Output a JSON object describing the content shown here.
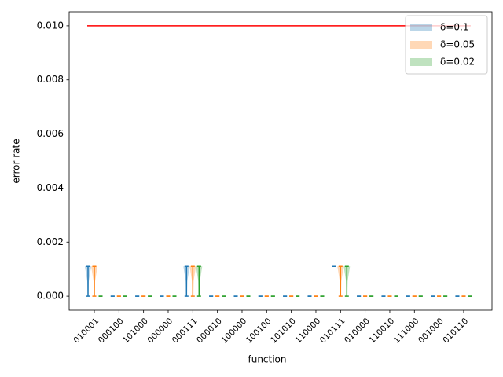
{
  "chart_data": {
    "type": "violin",
    "xlabel": "function",
    "ylabel": "error rate",
    "categories": [
      "010001",
      "000100",
      "101000",
      "000000",
      "000111",
      "000010",
      "100000",
      "100100",
      "101010",
      "110000",
      "010111",
      "010000",
      "110010",
      "111000",
      "001000",
      "010110"
    ],
    "series": [
      {
        "name": "δ=0.1",
        "color": "#1f77b4",
        "min": [
          0,
          0,
          0,
          0,
          0,
          0,
          0,
          0,
          0,
          0,
          0.0011,
          0,
          0,
          0,
          0,
          0
        ],
        "max": [
          0.0011,
          0,
          0,
          0,
          0.0011,
          0,
          0,
          0,
          0,
          0,
          0.0011,
          0,
          0,
          0,
          0,
          0
        ]
      },
      {
        "name": "δ=0.05",
        "color": "#ff7f0e",
        "min": [
          0,
          0,
          0,
          0,
          0,
          0,
          0,
          0,
          0,
          0,
          0,
          0,
          0,
          0,
          0,
          0
        ],
        "max": [
          0.0011,
          0,
          0,
          0,
          0.0011,
          0,
          0,
          0,
          0,
          0,
          0.0011,
          0,
          0,
          0,
          0,
          0
        ]
      },
      {
        "name": "δ=0.02",
        "color": "#2ca02c",
        "min": [
          0,
          0,
          0,
          0,
          0,
          0,
          0,
          0,
          0,
          0,
          0,
          0,
          0,
          0,
          0,
          0
        ],
        "max": [
          0,
          0,
          0,
          0,
          0.0011,
          0,
          0,
          0,
          0,
          0,
          0.0011,
          0,
          0,
          0,
          0,
          0
        ]
      }
    ],
    "threshold": 0.01,
    "threshold_color": "#ff0000",
    "ylim": [
      -0.00052,
      0.01052
    ],
    "yticks": [
      {
        "value": 0,
        "label": "0.000"
      },
      {
        "value": 0.002,
        "label": "0.002"
      },
      {
        "value": 0.004,
        "label": "0.004"
      },
      {
        "value": 0.006,
        "label": "0.006"
      },
      {
        "value": 0.008,
        "label": "0.008"
      },
      {
        "value": 0.01,
        "label": "0.010"
      }
    ],
    "legend": "upper right"
  }
}
